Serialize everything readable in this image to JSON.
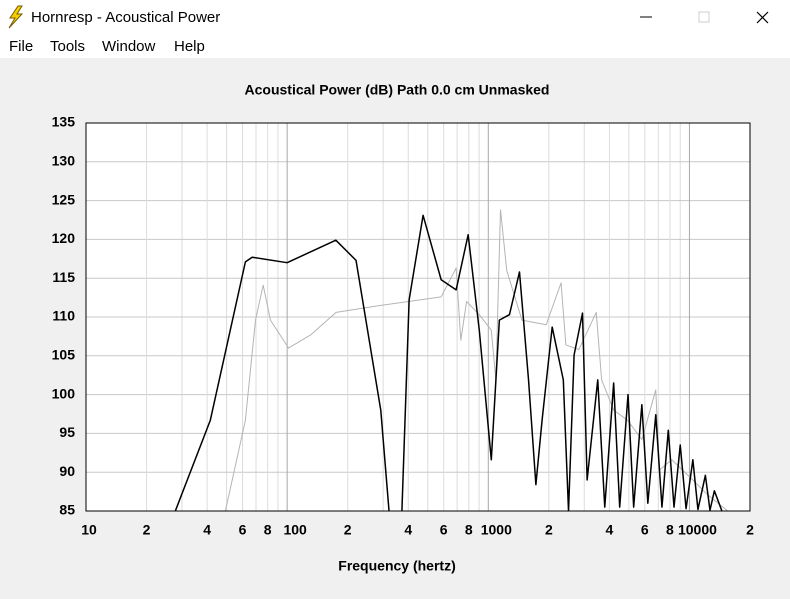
{
  "window": {
    "title": "Hornresp - Acoustical Power",
    "menu": [
      "File",
      "Tools",
      "Window",
      "Help"
    ]
  },
  "chart_data": {
    "type": "line",
    "title": "Acoustical Power (dB)   Path 0.0 cm   Unmasked",
    "x_label": "Frequency (hertz)",
    "log_x": true,
    "grid": true,
    "xlim": [
      10,
      20000
    ],
    "ylim": [
      85,
      135
    ],
    "xticks": [
      10,
      {
        "value": 20,
        "label": "2"
      },
      {
        "value": 40,
        "label": "4"
      },
      {
        "value": 60,
        "label": "6"
      },
      {
        "value": 80,
        "label": "8"
      },
      100,
      {
        "value": 200,
        "label": "2"
      },
      {
        "value": 400,
        "label": "4"
      },
      {
        "value": 600,
        "label": "6"
      },
      {
        "value": 800,
        "label": "8"
      },
      1000,
      {
        "value": 2000,
        "label": "2"
      },
      {
        "value": 4000,
        "label": "4"
      },
      {
        "value": 6000,
        "label": "6"
      },
      {
        "value": 8000,
        "label": "8"
      },
      10000,
      {
        "value": 20000,
        "label": "2"
      }
    ],
    "xgrid": [
      30,
      50,
      70,
      90,
      300,
      500,
      700,
      900,
      3000,
      5000,
      7000,
      9000
    ],
    "yticks": [
      85,
      90,
      95,
      100,
      105,
      110,
      115,
      120,
      125,
      130,
      135
    ],
    "series": [
      {
        "color": "#000000",
        "x": [
          27.8,
          41.5,
          62,
          67,
          100,
          174.6,
          220,
          292,
          321,
          345,
          372,
          404,
          474,
          583,
          692,
          794,
          902,
          1035,
          1135,
          1274,
          1429,
          1585,
          1724,
          1851,
          2078,
          2360,
          2505,
          2670,
          2940,
          3100,
          3500,
          3793,
          4200,
          4500,
          4950,
          5280,
          5800,
          6210,
          6800,
          7300,
          7850,
          8380,
          9000,
          9620,
          10400,
          11020,
          12000,
          12650,
          13300,
          14500
        ],
        "values": [
          85,
          96.7,
          117.1,
          117.7,
          117,
          119.9,
          117.3,
          98,
          85,
          null,
          85,
          112.2,
          123.1,
          114.8,
          113.5,
          120.6,
          108.3,
          91.6,
          109.6,
          110.3,
          115.8,
          101.9,
          88.4,
          96.7,
          108.7,
          101.9,
          85,
          105.1,
          110.5,
          89,
          101.9,
          85.5,
          101.5,
          85.5,
          100,
          85.5,
          98.7,
          86,
          97.4,
          85.5,
          95.4,
          85.5,
          93.5,
          85.3,
          91.6,
          85.2,
          89.6,
          85.1,
          87.6,
          85
        ]
      },
      {
        "color": "#b4b4b4",
        "x": [
          49.3,
          62,
          69.6,
          76,
          82.6,
          101.6,
          131,
          175,
          292,
          583,
          692,
          730,
          780,
          902,
          1035,
          1090,
          1150,
          1235,
          1470,
          1940,
          2300,
          2430,
          2820,
          3440,
          3660,
          4200,
          4920,
          5800,
          6800,
          7100,
          8170,
          10400,
          12300,
          15500
        ],
        "values": [
          85,
          96.7,
          109.6,
          114.1,
          109.6,
          106,
          107.7,
          110.6,
          111.5,
          112.6,
          116.3,
          107,
          112,
          110.3,
          108.3,
          101.9,
          123.8,
          116,
          109.6,
          109,
          114.4,
          106.4,
          105.8,
          110.6,
          101.9,
          98,
          96.7,
          94.2,
          100.6,
          90.3,
          91.6,
          89,
          87.1,
          85
        ]
      }
    ]
  }
}
